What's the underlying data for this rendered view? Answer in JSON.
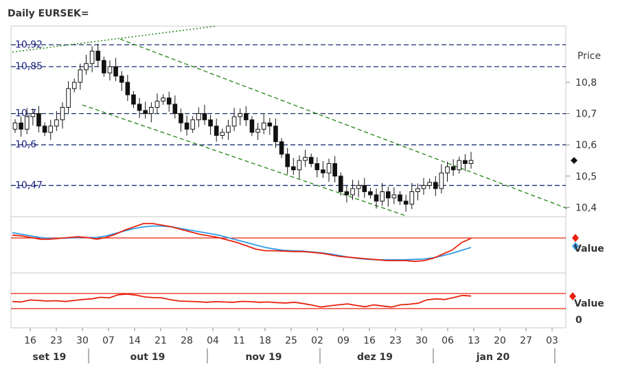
{
  "chart_data": {
    "type": "candlestick",
    "title": "Daily EURSEK=",
    "price_axis_label": "Price",
    "price_ticks": [
      "10,8",
      "10,7",
      "10,6",
      "10,5",
      "10,4"
    ],
    "price_tick_values": [
      10.8,
      10.7,
      10.6,
      10.5,
      10.4
    ],
    "ylim": [
      10.37,
      10.98
    ],
    "horizontal_lines": [
      {
        "label": "10,92",
        "value": 10.92
      },
      {
        "label": "10,85",
        "value": 10.85
      },
      {
        "label": "10,7",
        "value": 10.7
      },
      {
        "label": "10,6",
        "value": 10.6
      },
      {
        "label": "10,47",
        "value": 10.47
      }
    ],
    "last_price": 10.55,
    "x_day_labels": [
      "16",
      "23",
      "30",
      "07",
      "14",
      "21",
      "28",
      "04",
      "11",
      "18",
      "25",
      "02",
      "09",
      "16",
      "23",
      "30",
      "06",
      "13",
      "20",
      "27",
      "03"
    ],
    "month_labels": [
      "set 19",
      "out 19",
      "nov 19",
      "dez 19",
      "jan 20"
    ],
    "closes": [
      10.67,
      10.65,
      10.69,
      10.7,
      10.66,
      10.64,
      10.66,
      10.68,
      10.72,
      10.78,
      10.8,
      10.84,
      10.86,
      10.9,
      10.87,
      10.83,
      10.85,
      10.82,
      10.8,
      10.76,
      10.73,
      10.71,
      10.7,
      10.72,
      10.74,
      10.75,
      10.73,
      10.7,
      10.67,
      10.65,
      10.68,
      10.7,
      10.68,
      10.66,
      10.63,
      10.64,
      10.66,
      10.69,
      10.7,
      10.68,
      10.64,
      10.65,
      10.67,
      10.66,
      10.61,
      10.57,
      10.53,
      10.52,
      10.55,
      10.56,
      10.54,
      10.52,
      10.51,
      10.54,
      10.5,
      10.45,
      10.44,
      10.46,
      10.47,
      10.45,
      10.44,
      10.42,
      10.45,
      10.43,
      10.44,
      10.42,
      10.41,
      10.45,
      10.46,
      10.47,
      10.48,
      10.46,
      10.51,
      10.53,
      10.52,
      10.55,
      10.54,
      10.55
    ],
    "panel1": {
      "label": "Value",
      "red_series": [
        0.72,
        0.7,
        0.66,
        0.62,
        0.62,
        0.64,
        0.66,
        0.68,
        0.66,
        0.62,
        0.66,
        0.74,
        0.84,
        0.92,
        1.0,
        1.0,
        0.96,
        0.92,
        0.86,
        0.8,
        0.74,
        0.7,
        0.66,
        0.6,
        0.54,
        0.46,
        0.38,
        0.34,
        0.34,
        0.33,
        0.32,
        0.32,
        0.3,
        0.28,
        0.24,
        0.2,
        0.18,
        0.16,
        0.14,
        0.12,
        0.1,
        0.1,
        0.1,
        0.08,
        0.1,
        0.16,
        0.26,
        0.36,
        0.54,
        0.64
      ],
      "blue_series": [
        0.78,
        0.74,
        0.7,
        0.66,
        0.64,
        0.64,
        0.65,
        0.66,
        0.66,
        0.66,
        0.7,
        0.76,
        0.82,
        0.88,
        0.92,
        0.94,
        0.94,
        0.92,
        0.88,
        0.84,
        0.8,
        0.76,
        0.72,
        0.66,
        0.6,
        0.54,
        0.48,
        0.42,
        0.38,
        0.35,
        0.34,
        0.33,
        0.31,
        0.29,
        0.26,
        0.22,
        0.18,
        0.15,
        0.13,
        0.12,
        0.12,
        0.12,
        0.12,
        0.13,
        0.14,
        0.17,
        0.22,
        0.28,
        0.35,
        0.42
      ],
      "level_line": 0.65
    },
    "panel2": {
      "label": "Value",
      "zero_label": "0",
      "red_series": [
        0.45,
        0.42,
        0.55,
        0.52,
        0.48,
        0.5,
        0.45,
        0.52,
        0.58,
        0.62,
        0.72,
        0.68,
        0.88,
        0.92,
        0.86,
        0.74,
        0.7,
        0.68,
        0.56,
        0.48,
        0.46,
        0.44,
        0.4,
        0.44,
        0.42,
        0.4,
        0.46,
        0.44,
        0.4,
        0.42,
        0.38,
        0.36,
        0.4,
        0.32,
        0.22,
        0.1,
        0.18,
        0.24,
        0.3,
        0.2,
        0.12,
        0.24,
        0.16,
        0.1,
        0.24,
        0.28,
        0.34,
        0.56,
        0.62,
        0.58,
        0.7,
        0.84,
        0.8
      ],
      "upper_line": 0.96,
      "lower_line": 0.0
    },
    "colors": {
      "candle": "#111111",
      "trend_green": "#2e8b22",
      "hline_blue": "#1a2f6e",
      "red": "#e8200c",
      "blue": "#2f9be8",
      "marker_red": "#e8200c",
      "marker_blue": "#2f9be8"
    }
  }
}
